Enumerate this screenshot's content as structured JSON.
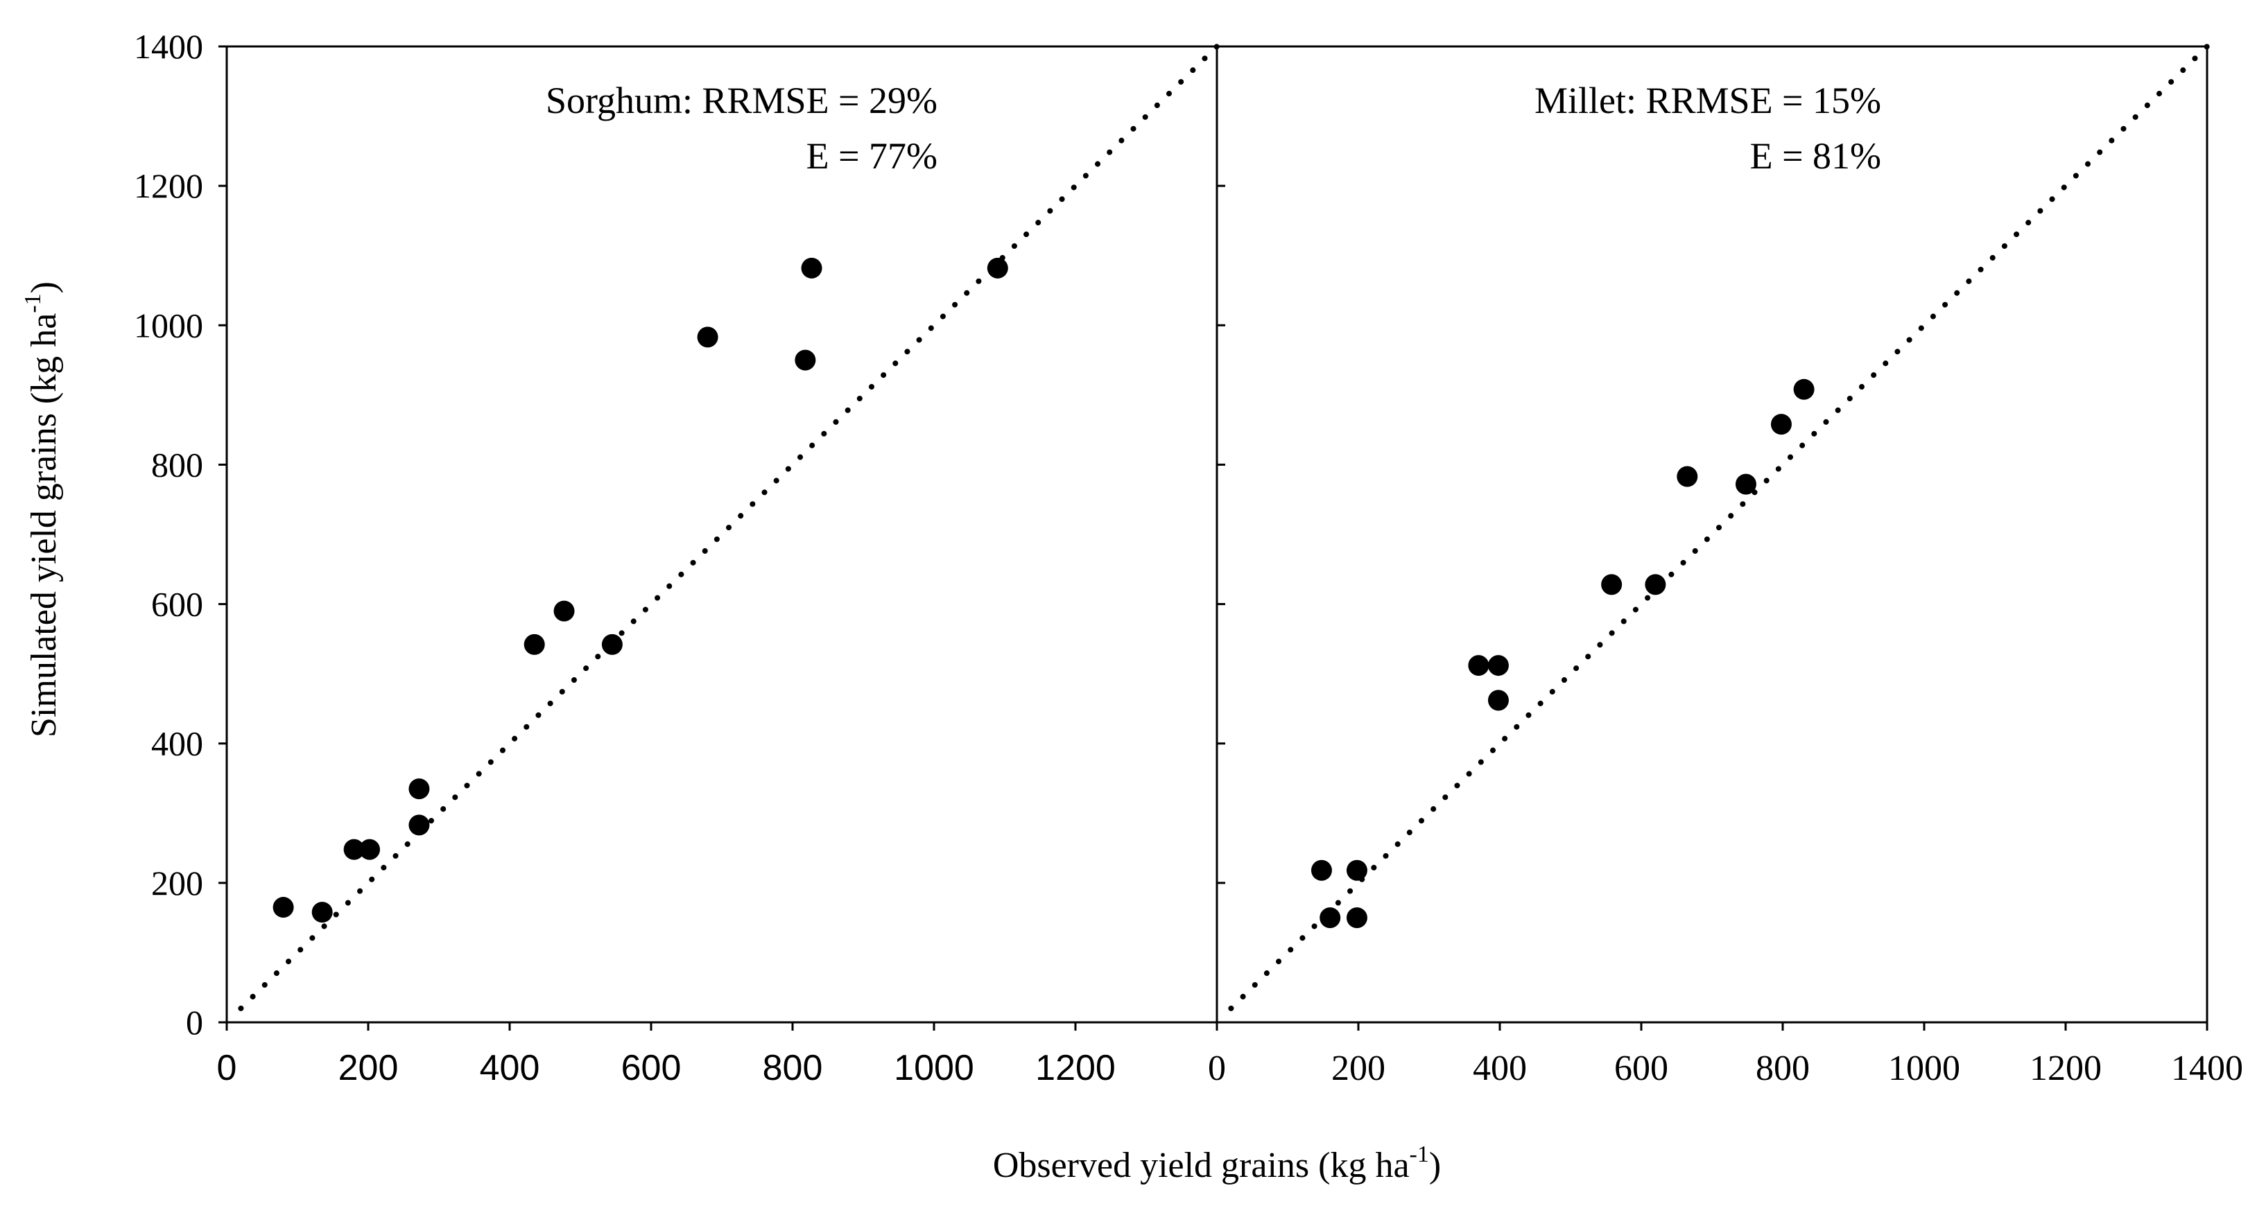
{
  "chart_data": {
    "type": "scatter",
    "xlabel_main": "Observed yield grains (kg ha",
    "xlabel_sup": "-1",
    "xlabel_close": ")",
    "ylabel_main": "Simulated yield grains (kg ha",
    "ylabel_sup": "-1",
    "ylabel_close": ")",
    "ylim": [
      0,
      1400
    ],
    "y_ticks": [
      "0",
      "200",
      "400",
      "600",
      "800",
      "1000",
      "1200",
      "1400"
    ],
    "reference_line": "1:1 dotted",
    "panels": [
      {
        "name": "Sorghum",
        "annotation_line1": "Sorghum: RRMSE = 29%",
        "annotation_line2": "E = 77%",
        "xlim": [
          0,
          1400
        ],
        "x_ticks": [
          "0",
          "200",
          "400",
          "600",
          "800",
          "1000",
          "1200"
        ],
        "points": [
          {
            "x": 80,
            "y": 165
          },
          {
            "x": 135,
            "y": 158
          },
          {
            "x": 180,
            "y": 248
          },
          {
            "x": 202,
            "y": 248
          },
          {
            "x": 272,
            "y": 335
          },
          {
            "x": 272,
            "y": 283
          },
          {
            "x": 435,
            "y": 542
          },
          {
            "x": 477,
            "y": 590
          },
          {
            "x": 545,
            "y": 542
          },
          {
            "x": 680,
            "y": 983
          },
          {
            "x": 818,
            "y": 950
          },
          {
            "x": 827,
            "y": 1082
          },
          {
            "x": 1090,
            "y": 1082
          }
        ]
      },
      {
        "name": "Millet",
        "annotation_line1": "Millet: RRMSE = 15%",
        "annotation_line2": "E = 81%",
        "xlim": [
          0,
          1400
        ],
        "x_ticks": [
          "0",
          "200",
          "400",
          "600",
          "800",
          "1000",
          "1200",
          "1400"
        ],
        "points": [
          {
            "x": 148,
            "y": 218
          },
          {
            "x": 160,
            "y": 150
          },
          {
            "x": 198,
            "y": 218
          },
          {
            "x": 198,
            "y": 150
          },
          {
            "x": 370,
            "y": 512
          },
          {
            "x": 398,
            "y": 512
          },
          {
            "x": 398,
            "y": 462
          },
          {
            "x": 558,
            "y": 628
          },
          {
            "x": 620,
            "y": 628
          },
          {
            "x": 665,
            "y": 783
          },
          {
            "x": 748,
            "y": 772
          },
          {
            "x": 798,
            "y": 858
          },
          {
            "x": 830,
            "y": 908
          }
        ]
      }
    ]
  }
}
